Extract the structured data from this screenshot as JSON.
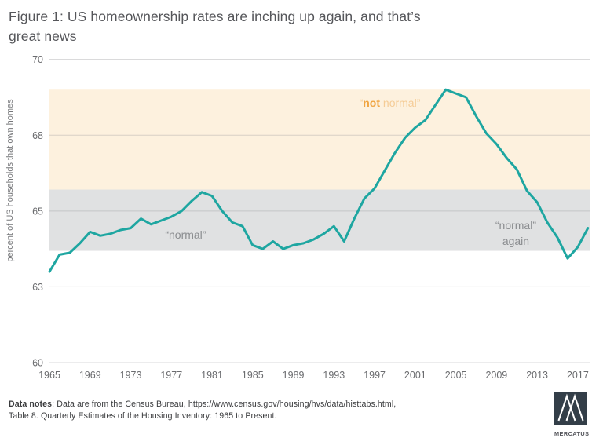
{
  "title": {
    "lines": [
      "Figure 1: US homeownership rates are inching up again, and that’s",
      "great news"
    ],
    "color": "#55565a"
  },
  "chart_data": {
    "type": "line",
    "title": "",
    "xlabel": "",
    "ylabel": "percent of US households that own homes",
    "y_ticks": [
      60,
      63,
      65,
      68,
      70
    ],
    "x_ticks": [
      1965,
      1969,
      1973,
      1977,
      1981,
      1985,
      1989,
      1993,
      1997,
      2001,
      2005,
      2009,
      2013,
      2017
    ],
    "x_range": [
      1965,
      2018.2
    ],
    "layout_hints": {
      "y_tick_spacing": "visually uniform despite unequal value increments",
      "grid": "horizontal gridlines at each y tick",
      "tick_color": "#6b6c6f",
      "grid_color": "#8f9092"
    },
    "bands": [
      {
        "name": "not-normal",
        "label_parts": [
          {
            "text": "“",
            "bold": false
          },
          {
            "text": "not",
            "bold": true
          },
          {
            "text": " normal”",
            "bold": false
          }
        ],
        "from": 65.85,
        "to": 69.2,
        "fill": "#fdf1de",
        "label_pos": {
          "year": 1998.5,
          "value": 68.85
        },
        "label_color_bold": "#f0a440",
        "label_color_normal": "#f5cc96"
      },
      {
        "name": "normal",
        "label": "“normal”",
        "from": 63.95,
        "to": 65.85,
        "fill": "#e0e1e2",
        "label_pos": {
          "year": 1978.4,
          "value": 64.38
        },
        "label_color": "#8b8d90"
      }
    ],
    "annotations": [
      {
        "name": "normal-again",
        "lines": [
          "“normal”",
          "again"
        ],
        "pos": {
          "year": 2010.9,
          "value": 64.62
        },
        "color": "#8b8d90"
      }
    ],
    "series": [
      {
        "name": "US homeownership rate",
        "color": "#1ea6a1",
        "stroke_width": 3,
        "points": [
          [
            1965,
            63.4
          ],
          [
            1966,
            63.85
          ],
          [
            1967,
            63.9
          ],
          [
            1968,
            64.15
          ],
          [
            1969,
            64.45
          ],
          [
            1970,
            64.35
          ],
          [
            1971,
            64.4
          ],
          [
            1972,
            64.5
          ],
          [
            1973,
            64.55
          ],
          [
            1974,
            64.8
          ],
          [
            1975,
            64.65
          ],
          [
            1976,
            64.75
          ],
          [
            1977,
            64.85
          ],
          [
            1978,
            65.0
          ],
          [
            1979,
            65.4
          ],
          [
            1980,
            65.75
          ],
          [
            1981,
            65.6
          ],
          [
            1982,
            65.0
          ],
          [
            1983,
            64.7
          ],
          [
            1984,
            64.6
          ],
          [
            1985,
            64.1
          ],
          [
            1986,
            64.0
          ],
          [
            1987,
            64.2
          ],
          [
            1988,
            64.0
          ],
          [
            1989,
            64.1
          ],
          [
            1990,
            64.15
          ],
          [
            1991,
            64.25
          ],
          [
            1992,
            64.4
          ],
          [
            1993,
            64.6
          ],
          [
            1994,
            64.2
          ],
          [
            1995,
            64.8
          ],
          [
            1996,
            65.5
          ],
          [
            1997,
            65.9
          ],
          [
            1998,
            66.6
          ],
          [
            1999,
            67.3
          ],
          [
            2000,
            67.9
          ],
          [
            2001,
            68.2
          ],
          [
            2002,
            68.4
          ],
          [
            2003,
            68.8
          ],
          [
            2004,
            69.2
          ],
          [
            2005,
            69.1
          ],
          [
            2006,
            69.0
          ],
          [
            2007,
            68.5
          ],
          [
            2008,
            68.05
          ],
          [
            2009,
            67.65
          ],
          [
            2010,
            67.1
          ],
          [
            2011,
            66.65
          ],
          [
            2012,
            65.8
          ],
          [
            2013,
            65.35
          ],
          [
            2014,
            64.7
          ],
          [
            2015,
            64.3
          ],
          [
            2016,
            63.75
          ],
          [
            2017,
            64.05
          ],
          [
            2018,
            64.55
          ]
        ]
      }
    ]
  },
  "footer": {
    "notes_bold": "Data notes",
    "line1_rest": ": Data are from the Census Bureau, https://www.census.gov/housing/hvs/data/histtabs.html,",
    "line2": "Table 8. Quarterly Estimates of the Housing Inventory: 1965 to Present.",
    "color": "#3a3b3d"
  },
  "logo": {
    "caption": "MERCATUS",
    "square_color": "#333e48",
    "mark_color": "#ffffff"
  }
}
